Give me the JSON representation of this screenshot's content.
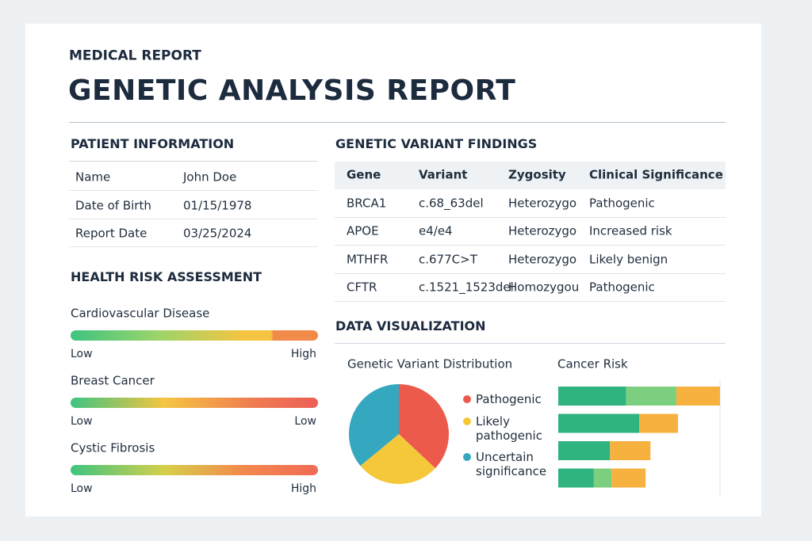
{
  "header": {
    "kicker": "MEDICAL REPORT",
    "title": "GENETIC ANALYSIS REPORT"
  },
  "patient": {
    "title": "PATIENT INFORMATION",
    "rows": [
      [
        "Name",
        "John Doe"
      ],
      [
        "Date of Birth",
        "01/15/1978"
      ],
      [
        "Report Date",
        "03/25/2024"
      ]
    ]
  },
  "risk": {
    "title": "HEALTH RISK ASSESSMENT",
    "items": [
      {
        "label": "Cardiovascular Disease",
        "low": "Low",
        "high": "High"
      },
      {
        "label": "Breast Cancer",
        "low": "Low",
        "high": "Low"
      },
      {
        "label": "Cystic Fibrosis",
        "low": "Low",
        "high": "High"
      }
    ]
  },
  "variants": {
    "title": "GENETIC VARIANT FINDINGS",
    "columns": [
      "Gene",
      "Variant",
      "Zygosity",
      "Clinical Significance"
    ],
    "rows": [
      [
        "BRCA1",
        "c.68_63del",
        "Heterozygo",
        "Pathogenic"
      ],
      [
        "APOE",
        "e4/e4",
        "Heterozygo",
        "Increased risk"
      ],
      [
        "MTHFR",
        "c.677C>T",
        "Heterozygo",
        "Likely benign"
      ],
      [
        "CFTR",
        "c.1521_1523del",
        "Homozygou",
        "Pathogenic"
      ]
    ]
  },
  "visualization": {
    "title": "DATA VISUALIZATION"
  },
  "chart_data": [
    {
      "type": "pie",
      "title": "Genetic Variant Distribution",
      "categories": [
        "Pathogenic",
        "Likely pathogenic",
        "Uncertain significance"
      ],
      "values": [
        37,
        27,
        36
      ],
      "colors": [
        "#ec5a4c",
        "#f5c83a",
        "#35a8c0"
      ]
    },
    {
      "type": "bar",
      "orientation": "horizontal",
      "title": "Cancer Risk",
      "series": [
        {
          "color": "#2fb37f",
          "values": [
            42,
            50,
            32,
            22
          ]
        },
        {
          "color": "#7ccf7e",
          "values": [
            31,
            0,
            0,
            11
          ]
        },
        {
          "color": "#f7b13f",
          "values": [
            27,
            24,
            25,
            21
          ]
        }
      ]
    }
  ]
}
